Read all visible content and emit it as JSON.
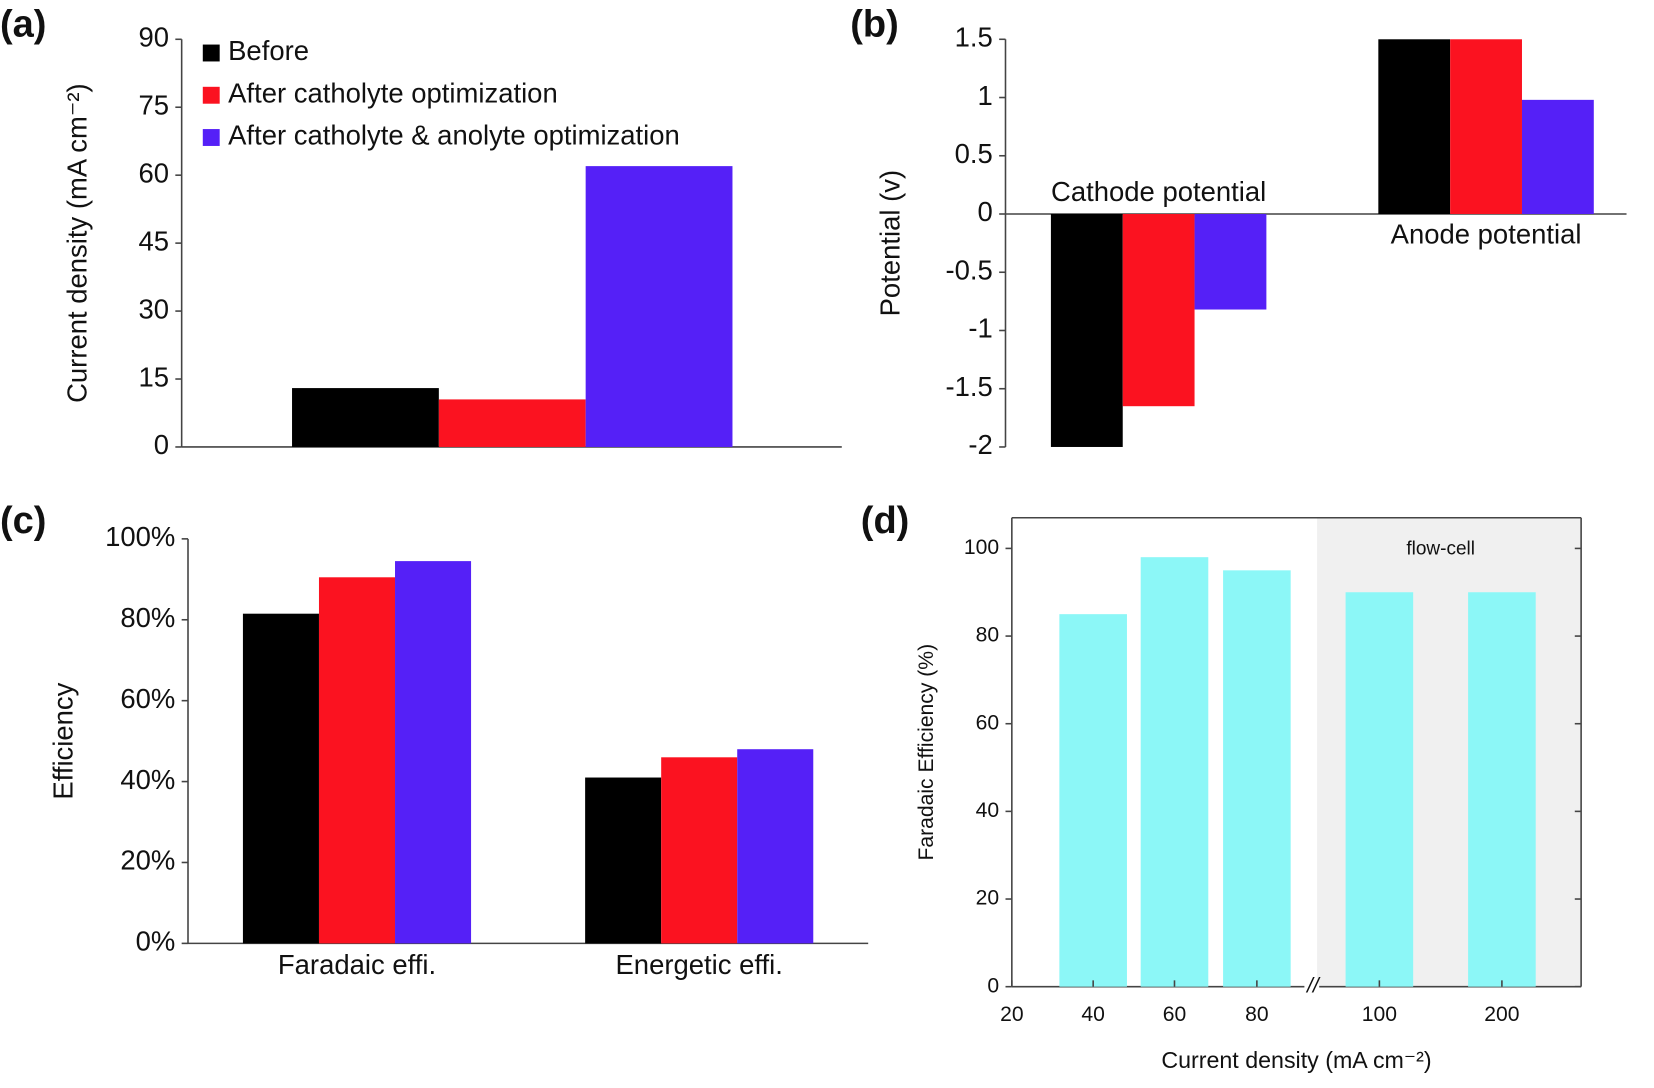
{
  "chart_data": [
    {
      "type": "bar",
      "panel_label": "(a)",
      "ylabel": "Current density (mA cm⁻²)",
      "categories": [
        null
      ],
      "series": [
        {
          "name": "Before",
          "color": "#000000",
          "values": [
            13
          ]
        },
        {
          "name": "After catholyte optimization",
          "color": "#fb1220",
          "values": [
            10.5
          ]
        },
        {
          "name": "After catholyte & anolyte optimization",
          "color": "#5520f7",
          "values": [
            62
          ]
        }
      ],
      "ylim": [
        0,
        90
      ],
      "yticks": [
        0,
        15,
        30,
        45,
        60,
        75,
        90
      ],
      "legend": "top left"
    },
    {
      "type": "bar",
      "panel_label": "(b)",
      "ylabel": "Potential (v)",
      "categories": [
        "Cathode potential",
        "Anode potential"
      ],
      "series": [
        {
          "color": "#000000",
          "values": [
            -2,
            1.5
          ]
        },
        {
          "color": "#fb1220",
          "values": [
            -1.65,
            1.5
          ]
        },
        {
          "color": "#5520f7",
          "values": [
            -0.82,
            0.98
          ]
        }
      ],
      "ylim": [
        -2,
        1.5
      ],
      "yticks": [
        -2,
        -1.5,
        -1,
        -0.5,
        0,
        0.5,
        1,
        1.5
      ]
    },
    {
      "type": "bar",
      "panel_label": "(c)",
      "ylabel": "Efficiency",
      "categories": [
        "Faradaic effi.",
        "Energetic effi."
      ],
      "series": [
        {
          "color": "#000000",
          "values": [
            81.5,
            41
          ]
        },
        {
          "color": "#fb1220",
          "values": [
            90.5,
            46
          ]
        },
        {
          "color": "#5520f7",
          "values": [
            94.5,
            48
          ]
        }
      ],
      "ylim": [
        0,
        100
      ],
      "yticks": [
        {
          "value": 0,
          "label": "0%"
        },
        {
          "value": 20,
          "label": "20%"
        },
        {
          "value": 40,
          "label": "40%"
        },
        {
          "value": 60,
          "label": "60%"
        },
        {
          "value": 80,
          "label": "80%"
        },
        {
          "value": 100,
          "label": "100%"
        }
      ]
    },
    {
      "type": "bar",
      "panel_label": "(d)",
      "ylabel": "Faradaic Efficiency (%)",
      "xlabel": "Current density (mA cm⁻²)",
      "xticks": [
        "20",
        "40",
        "60",
        "80",
        "100",
        "200"
      ],
      "break_mark": "//",
      "annotation": "flow-cell",
      "categories": [
        "40",
        "60",
        "80",
        "100",
        "200"
      ],
      "values": [
        85,
        98,
        95,
        90,
        90
      ],
      "color": "#8cf7f7",
      "ylim": [
        0,
        107
      ],
      "yticks": [
        0,
        20,
        40,
        60,
        80,
        100
      ]
    }
  ]
}
